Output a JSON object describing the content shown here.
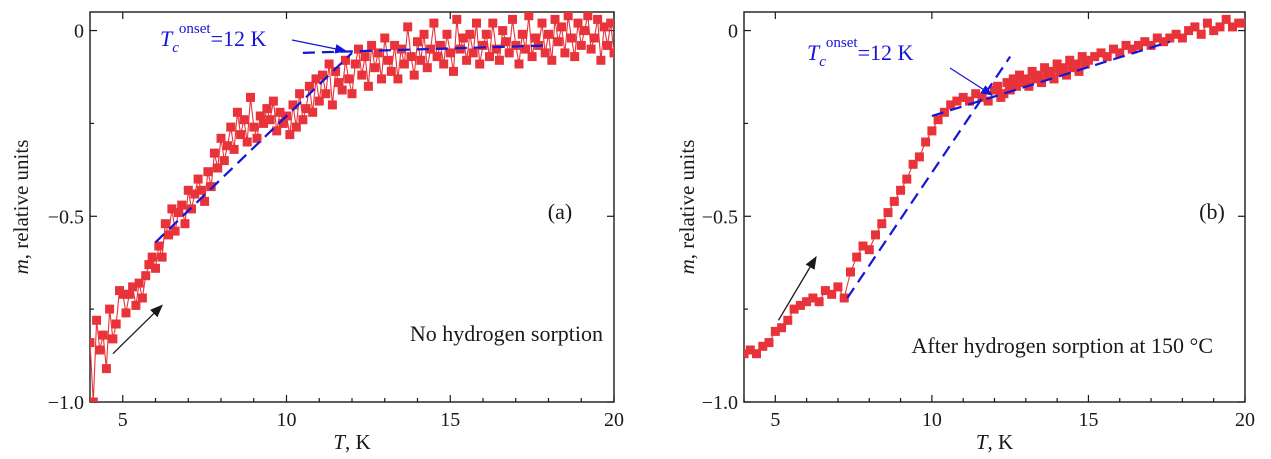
{
  "chart_data": [
    {
      "type": "scatter",
      "panel_label": "(a)",
      "annotation": "No hydrogen sorption",
      "xlabel": "T, K",
      "ylabel": "m, relative units",
      "xlim": [
        4,
        20
      ],
      "ylim": [
        -1.0,
        0.05
      ],
      "xticks": [
        5,
        10,
        15,
        20
      ],
      "yticks": [
        -1.0,
        -0.5,
        0
      ],
      "ytick_labels": [
        "−1.0",
        "−0.5",
        "0"
      ],
      "onset_label": {
        "symbol": "T",
        "sub": "c",
        "sup": "onset",
        "value": "=12 K"
      },
      "onset_T": 12,
      "markers": "squares",
      "connected": true,
      "color": "#e8333a",
      "fit_color": "#1515d6",
      "fit_lines": [
        {
          "x": [
            6.0,
            12.0
          ],
          "y": [
            -0.57,
            -0.06
          ]
        },
        {
          "x": [
            10.5,
            18.0
          ],
          "y": [
            -0.06,
            -0.04
          ]
        }
      ],
      "arrow": {
        "from": [
          4.7,
          -0.87
        ],
        "to": [
          6.2,
          -0.74
        ]
      },
      "x": [
        4.0,
        4.1,
        4.2,
        4.3,
        4.4,
        4.5,
        4.6,
        4.7,
        4.8,
        4.9,
        5.0,
        5.1,
        5.2,
        5.3,
        5.4,
        5.5,
        5.6,
        5.7,
        5.8,
        5.9,
        6.0,
        6.1,
        6.2,
        6.3,
        6.4,
        6.5,
        6.6,
        6.7,
        6.8,
        6.9,
        7.0,
        7.1,
        7.2,
        7.3,
        7.4,
        7.5,
        7.6,
        7.7,
        7.8,
        7.9,
        8.0,
        8.1,
        8.2,
        8.3,
        8.4,
        8.5,
        8.6,
        8.7,
        8.8,
        8.9,
        9.0,
        9.1,
        9.2,
        9.3,
        9.4,
        9.5,
        9.6,
        9.7,
        9.8,
        9.9,
        10.0,
        10.1,
        10.2,
        10.3,
        10.4,
        10.5,
        10.6,
        10.7,
        10.8,
        10.9,
        11.0,
        11.1,
        11.2,
        11.3,
        11.4,
        11.5,
        11.6,
        11.7,
        11.8,
        11.9,
        12.0,
        12.1,
        12.2,
        12.3,
        12.4,
        12.5,
        12.6,
        12.7,
        12.8,
        12.9,
        13.0,
        13.1,
        13.2,
        13.3,
        13.4,
        13.5,
        13.6,
        13.7,
        13.8,
        13.9,
        14.0,
        14.1,
        14.2,
        14.3,
        14.4,
        14.5,
        14.6,
        14.7,
        14.8,
        14.9,
        15.0,
        15.1,
        15.2,
        15.3,
        15.4,
        15.5,
        15.6,
        15.7,
        15.8,
        15.9,
        16.0,
        16.1,
        16.2,
        16.3,
        16.4,
        16.5,
        16.6,
        16.7,
        16.8,
        16.9,
        17.0,
        17.1,
        17.2,
        17.3,
        17.4,
        17.5,
        17.6,
        17.7,
        17.8,
        17.9,
        18.0,
        18.1,
        18.2,
        18.3,
        18.4,
        18.5,
        18.6,
        18.7,
        18.8,
        18.9,
        19.0,
        19.1,
        19.2,
        19.3,
        19.4,
        19.5,
        19.6,
        19.7,
        19.8,
        19.9,
        20.0
      ],
      "y": [
        -0.84,
        -1.0,
        -0.78,
        -0.86,
        -0.82,
        -0.91,
        -0.75,
        -0.83,
        -0.79,
        -0.7,
        -0.71,
        -0.76,
        -0.71,
        -0.69,
        -0.74,
        -0.68,
        -0.72,
        -0.66,
        -0.63,
        -0.61,
        -0.64,
        -0.58,
        -0.61,
        -0.52,
        -0.55,
        -0.48,
        -0.54,
        -0.49,
        -0.47,
        -0.52,
        -0.43,
        -0.48,
        -0.44,
        -0.4,
        -0.43,
        -0.46,
        -0.38,
        -0.42,
        -0.33,
        -0.37,
        -0.29,
        -0.35,
        -0.31,
        -0.26,
        -0.32,
        -0.22,
        -0.28,
        -0.24,
        -0.3,
        -0.18,
        -0.26,
        -0.29,
        -0.23,
        -0.25,
        -0.21,
        -0.24,
        -0.19,
        -0.27,
        -0.22,
        -0.25,
        -0.23,
        -0.28,
        -0.2,
        -0.26,
        -0.17,
        -0.24,
        -0.21,
        -0.15,
        -0.22,
        -0.13,
        -0.19,
        -0.12,
        -0.17,
        -0.09,
        -0.2,
        -0.11,
        -0.14,
        -0.16,
        -0.08,
        -0.13,
        -0.17,
        -0.09,
        -0.05,
        -0.12,
        -0.07,
        -0.15,
        -0.04,
        -0.1,
        -0.06,
        -0.13,
        -0.02,
        -0.08,
        -0.11,
        -0.04,
        -0.13,
        -0.05,
        -0.09,
        0.01,
        -0.07,
        -0.12,
        -0.03,
        -0.08,
        -0.01,
        -0.1,
        -0.05,
        0.02,
        -0.07,
        -0.04,
        -0.09,
        -0.01,
        -0.06,
        -0.11,
        0.03,
        -0.05,
        -0.02,
        -0.08,
        -0.01,
        -0.06,
        0.02,
        -0.09,
        -0.04,
        -0.01,
        -0.07,
        0.02,
        -0.05,
        -0.08,
        0.0,
        -0.03,
        -0.06,
        0.03,
        -0.04,
        -0.09,
        -0.01,
        -0.05,
        0.04,
        -0.07,
        -0.02,
        -0.04,
        0.02,
        -0.06,
        -0.01,
        -0.08,
        0.03,
        -0.03,
        0.01,
        -0.06,
        0.04,
        -0.02,
        -0.07,
        0.02,
        -0.04,
        0.0,
        0.04,
        -0.05,
        -0.02,
        0.03,
        -0.08,
        0.01,
        -0.04,
        0.02,
        -0.06
      ]
    },
    {
      "type": "scatter",
      "panel_label": "(b)",
      "annotation": "After hydrogen sorption at 150 °C",
      "xlabel": "T, K",
      "ylabel": "m, relative units",
      "xlim": [
        4,
        20
      ],
      "ylim": [
        -1.0,
        0.05
      ],
      "xticks": [
        5,
        10,
        15,
        20
      ],
      "yticks": [
        -1.0,
        -0.5,
        0
      ],
      "ytick_labels": [
        "−1.0",
        "−0.5",
        "0"
      ],
      "onset_label": {
        "symbol": "T",
        "sub": "c",
        "sup": "onset",
        "value": "=12 K"
      },
      "onset_T": 12,
      "markers": "squares",
      "connected": true,
      "color": "#e8333a",
      "fit_color": "#1515d6",
      "fit_lines": [
        {
          "x": [
            7.3,
            12.5
          ],
          "y": [
            -0.72,
            -0.07
          ]
        },
        {
          "x": [
            10.0,
            17.6
          ],
          "y": [
            -0.23,
            -0.03
          ]
        }
      ],
      "arrow": {
        "from": [
          5.1,
          -0.78
        ],
        "to": [
          6.3,
          -0.61
        ]
      },
      "x": [
        4.0,
        4.2,
        4.4,
        4.6,
        4.8,
        5.0,
        5.2,
        5.4,
        5.6,
        5.8,
        6.0,
        6.2,
        6.4,
        6.6,
        6.8,
        7.0,
        7.2,
        7.4,
        7.6,
        7.8,
        8.0,
        8.2,
        8.4,
        8.6,
        8.8,
        9.0,
        9.2,
        9.4,
        9.6,
        9.8,
        10.0,
        10.2,
        10.4,
        10.6,
        10.8,
        11.0,
        11.2,
        11.4,
        11.6,
        11.8,
        12.0,
        12.1,
        12.2,
        12.3,
        12.4,
        12.5,
        12.6,
        12.7,
        12.8,
        12.9,
        13.0,
        13.1,
        13.2,
        13.3,
        13.4,
        13.5,
        13.6,
        13.7,
        13.8,
        13.9,
        14.0,
        14.1,
        14.2,
        14.3,
        14.4,
        14.5,
        14.6,
        14.7,
        14.8,
        14.9,
        15.0,
        15.2,
        15.4,
        15.6,
        15.8,
        16.0,
        16.2,
        16.4,
        16.6,
        16.8,
        17.0,
        17.2,
        17.4,
        17.6,
        17.8,
        18.0,
        18.2,
        18.4,
        18.6,
        18.8,
        19.0,
        19.2,
        19.4,
        19.6,
        19.8,
        20.0
      ],
      "y": [
        -0.87,
        -0.86,
        -0.87,
        -0.85,
        -0.84,
        -0.81,
        -0.8,
        -0.78,
        -0.75,
        -0.74,
        -0.73,
        -0.72,
        -0.73,
        -0.7,
        -0.71,
        -0.69,
        -0.72,
        -0.65,
        -0.61,
        -0.58,
        -0.59,
        -0.55,
        -0.52,
        -0.49,
        -0.46,
        -0.43,
        -0.4,
        -0.36,
        -0.34,
        -0.3,
        -0.27,
        -0.24,
        -0.22,
        -0.2,
        -0.19,
        -0.18,
        -0.19,
        -0.17,
        -0.18,
        -0.19,
        -0.16,
        -0.15,
        -0.18,
        -0.17,
        -0.14,
        -0.16,
        -0.13,
        -0.15,
        -0.12,
        -0.14,
        -0.13,
        -0.15,
        -0.11,
        -0.13,
        -0.12,
        -0.14,
        -0.1,
        -0.12,
        -0.11,
        -0.13,
        -0.09,
        -0.11,
        -0.1,
        -0.12,
        -0.08,
        -0.1,
        -0.09,
        -0.11,
        -0.07,
        -0.09,
        -0.08,
        -0.07,
        -0.06,
        -0.07,
        -0.05,
        -0.06,
        -0.04,
        -0.05,
        -0.04,
        -0.03,
        -0.04,
        -0.02,
        -0.03,
        -0.02,
        -0.01,
        -0.02,
        0.0,
        0.01,
        -0.01,
        0.02,
        0.0,
        0.01,
        0.03,
        0.01,
        0.02,
        0.02
      ]
    }
  ]
}
